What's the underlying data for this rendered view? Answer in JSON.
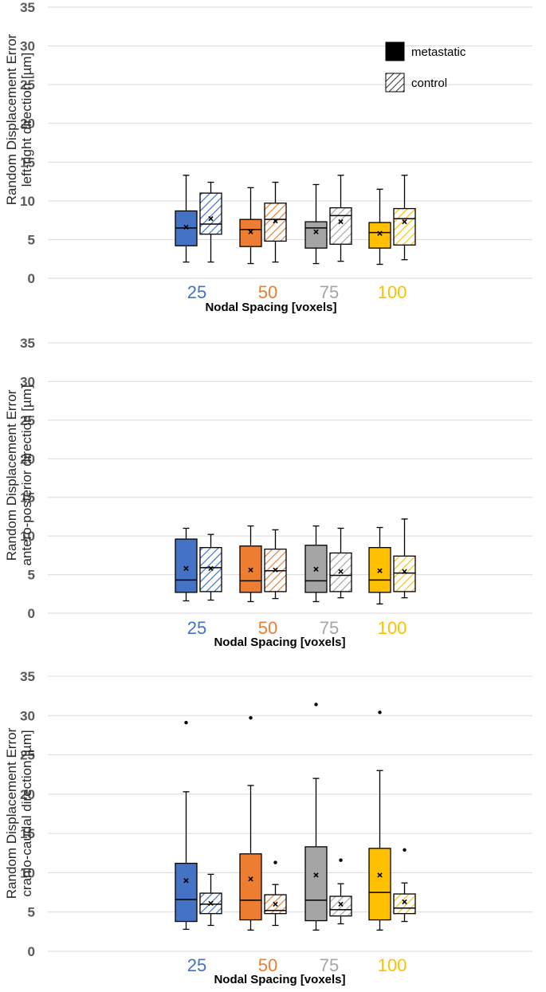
{
  "chart_data": [
    {
      "type": "box",
      "ylabel": [
        "Random Displacement Error",
        "left-right direction [µm]"
      ],
      "xlabel": "Nodal Spacing [voxels]",
      "ylim": [
        0,
        35
      ],
      "yticks": [
        "0",
        "5",
        "10",
        "15",
        "20",
        "25",
        "30",
        "35"
      ],
      "grid": true,
      "legend": {
        "placement": "top-right",
        "entries": [
          {
            "name": "metastatic",
            "pattern": "solid"
          },
          {
            "name": "control",
            "pattern": "hatched"
          }
        ]
      },
      "categories": [
        "25",
        "50",
        "75",
        "100"
      ],
      "category_colors": [
        "#4472C4",
        "#ED7D31",
        "#A5A5A5",
        "#FFC000"
      ],
      "series": [
        {
          "name": "metastatic",
          "boxes": [
            {
              "min": 2.1,
              "q1": 4.2,
              "median": 6.5,
              "q3": 8.7,
              "max": 13.3,
              "mean": 6.6,
              "outliers": []
            },
            {
              "min": 1.9,
              "q1": 4.1,
              "median": 6.3,
              "q3": 7.6,
              "max": 11.7,
              "mean": 6.0,
              "outliers": []
            },
            {
              "min": 1.9,
              "q1": 3.9,
              "median": 6.5,
              "q3": 7.3,
              "max": 12.1,
              "mean": 6.0,
              "outliers": []
            },
            {
              "min": 1.8,
              "q1": 3.9,
              "median": 5.9,
              "q3": 7.2,
              "max": 11.5,
              "mean": 5.8,
              "outliers": []
            }
          ]
        },
        {
          "name": "control",
          "boxes": [
            {
              "min": 2.1,
              "q1": 5.7,
              "median": 7.0,
              "q3": 11.0,
              "max": 12.4,
              "mean": 7.7,
              "outliers": []
            },
            {
              "min": 2.1,
              "q1": 4.8,
              "median": 7.6,
              "q3": 9.7,
              "max": 12.4,
              "mean": 7.4,
              "outliers": []
            },
            {
              "min": 2.2,
              "q1": 4.4,
              "median": 8.1,
              "q3": 9.1,
              "max": 13.3,
              "mean": 7.3,
              "outliers": []
            },
            {
              "min": 2.4,
              "q1": 4.3,
              "median": 7.7,
              "q3": 9.0,
              "max": 13.3,
              "mean": 7.3,
              "outliers": []
            }
          ]
        }
      ]
    },
    {
      "type": "box",
      "ylabel": [
        "Random Displacement Error",
        "antero-posterior direction [µm]"
      ],
      "xlabel": "Nodal Spacing [voxels]",
      "ylim": [
        0,
        35
      ],
      "yticks": [
        "0",
        "5",
        "10",
        "15",
        "20",
        "25",
        "30",
        "35"
      ],
      "grid": true,
      "categories": [
        "25",
        "50",
        "75",
        "100"
      ],
      "category_colors": [
        "#4472C4",
        "#ED7D31",
        "#A5A5A5",
        "#FFC000"
      ],
      "series": [
        {
          "name": "metastatic",
          "boxes": [
            {
              "min": 1.6,
              "q1": 2.7,
              "median": 4.3,
              "q3": 9.6,
              "max": 11.0,
              "mean": 5.8,
              "outliers": []
            },
            {
              "min": 1.5,
              "q1": 2.7,
              "median": 4.2,
              "q3": 8.7,
              "max": 11.3,
              "mean": 5.6,
              "outliers": []
            },
            {
              "min": 1.5,
              "q1": 2.7,
              "median": 4.2,
              "q3": 8.8,
              "max": 11.3,
              "mean": 5.7,
              "outliers": []
            },
            {
              "min": 1.2,
              "q1": 2.7,
              "median": 4.3,
              "q3": 8.5,
              "max": 11.1,
              "mean": 5.5,
              "outliers": []
            }
          ]
        },
        {
          "name": "control",
          "boxes": [
            {
              "min": 1.7,
              "q1": 2.8,
              "median": 5.9,
              "q3": 8.5,
              "max": 10.2,
              "mean": 5.8,
              "outliers": []
            },
            {
              "min": 1.9,
              "q1": 2.8,
              "median": 5.5,
              "q3": 8.3,
              "max": 10.8,
              "mean": 5.6,
              "outliers": []
            },
            {
              "min": 2.0,
              "q1": 2.8,
              "median": 4.9,
              "q3": 7.8,
              "max": 11.0,
              "mean": 5.4,
              "outliers": []
            },
            {
              "min": 2.0,
              "q1": 2.8,
              "median": 5.2,
              "q3": 7.4,
              "max": 12.2,
              "mean": 5.4,
              "outliers": []
            }
          ]
        }
      ]
    },
    {
      "type": "box",
      "ylabel": [
        "Random Displacement Error",
        "cranio-caudal direction [µm]"
      ],
      "xlabel": "Nodal Spacing [voxels]",
      "ylim": [
        0,
        35
      ],
      "yticks": [
        "0",
        "5",
        "10",
        "15",
        "20",
        "25",
        "30",
        "35"
      ],
      "grid": true,
      "categories": [
        "25",
        "50",
        "75",
        "100"
      ],
      "category_colors": [
        "#4472C4",
        "#ED7D31",
        "#A5A5A5",
        "#FFC000"
      ],
      "series": [
        {
          "name": "metastatic",
          "boxes": [
            {
              "min": 2.8,
              "q1": 3.8,
              "median": 6.6,
              "q3": 11.2,
              "max": 20.3,
              "mean": 9.0,
              "outliers": [
                29.1
              ]
            },
            {
              "min": 2.7,
              "q1": 4.0,
              "median": 6.5,
              "q3": 12.4,
              "max": 21.1,
              "mean": 9.2,
              "outliers": [
                29.7
              ]
            },
            {
              "min": 2.7,
              "q1": 3.9,
              "median": 6.5,
              "q3": 13.3,
              "max": 22.0,
              "mean": 9.7,
              "outliers": [
                31.4
              ]
            },
            {
              "min": 2.7,
              "q1": 4.0,
              "median": 7.5,
              "q3": 13.1,
              "max": 23.0,
              "mean": 9.7,
              "outliers": [
                30.4
              ]
            }
          ]
        },
        {
          "name": "control",
          "boxes": [
            {
              "min": 3.3,
              "q1": 4.8,
              "median": 6.0,
              "q3": 7.4,
              "max": 9.8,
              "mean": 6.1,
              "outliers": []
            },
            {
              "min": 3.3,
              "q1": 4.8,
              "median": 5.2,
              "q3": 7.2,
              "max": 8.5,
              "mean": 6.0,
              "outliers": [
                11.3
              ]
            },
            {
              "min": 3.5,
              "q1": 4.5,
              "median": 5.3,
              "q3": 7.0,
              "max": 8.6,
              "mean": 6.0,
              "outliers": [
                11.6
              ]
            },
            {
              "min": 3.8,
              "q1": 4.8,
              "median": 5.5,
              "q3": 7.3,
              "max": 8.7,
              "mean": 6.3,
              "outliers": [
                12.9
              ]
            }
          ]
        }
      ]
    }
  ]
}
